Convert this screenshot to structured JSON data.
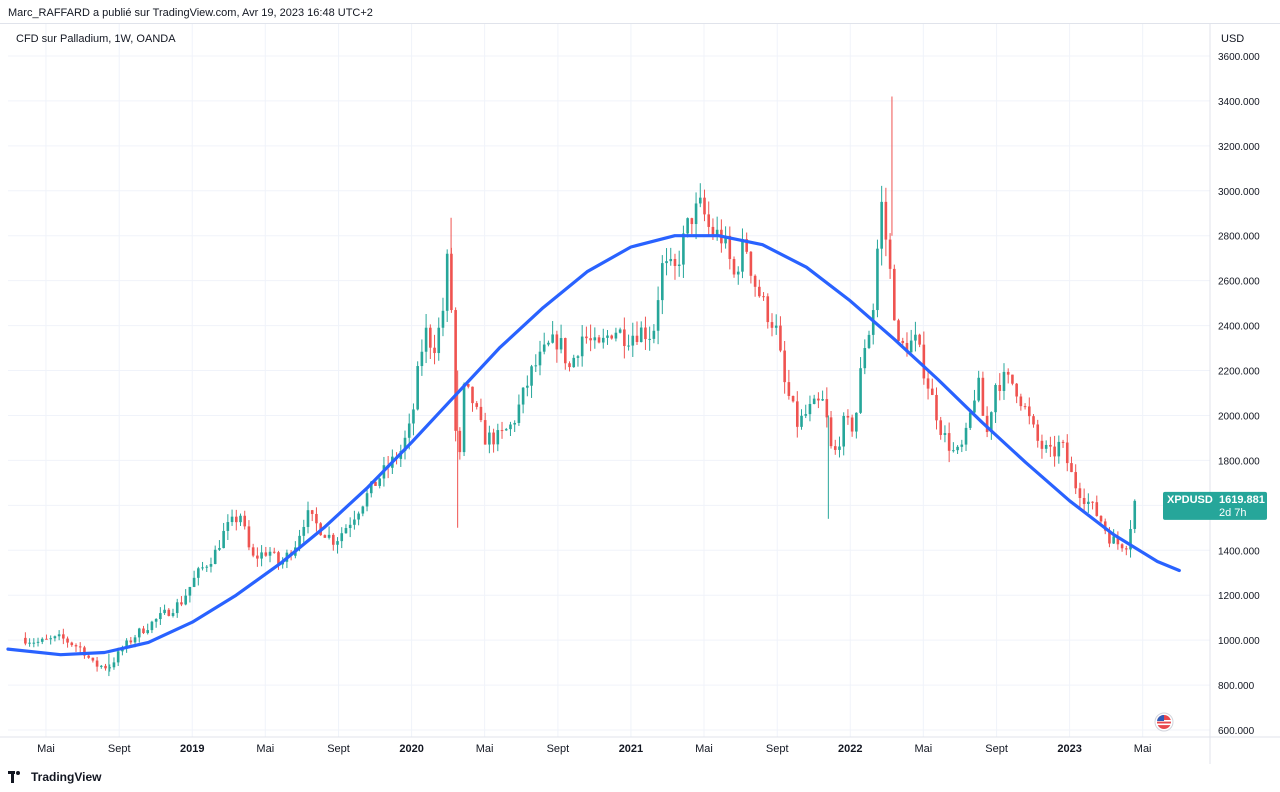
{
  "header": {
    "publisher": "Marc_RAFFARD a publié sur TradingView.com, Avr 19, 2023 16:48 UTC+2"
  },
  "footer": {
    "brand": "TradingView",
    "logo_icon": "tradingview-logo-icon"
  },
  "chart_data": {
    "type": "candlestick",
    "title": "CFD sur Palladium, 1W, OANDA",
    "currency": "USD",
    "ylim": [
      600,
      3600
    ],
    "y_ticks": [
      "600.000",
      "800.000",
      "1000.000",
      "1200.000",
      "1400.000",
      "1600.000",
      "1800.000",
      "2000.000",
      "2200.000",
      "2400.000",
      "2600.000",
      "2800.000",
      "3000.000",
      "3200.000",
      "3400.000",
      "3600.000"
    ],
    "y_tick_values": [
      600,
      800,
      1000,
      1200,
      1400,
      1600,
      1800,
      2000,
      2200,
      2400,
      2600,
      2800,
      3000,
      3200,
      3400,
      3600
    ],
    "x_ticks": [
      "Mai",
      "Sept",
      "2019",
      "Mai",
      "Sept",
      "2020",
      "Mai",
      "Sept",
      "2021",
      "Mai",
      "Sept",
      "2022",
      "Mai",
      "Sept",
      "2023",
      "Mai"
    ],
    "x_tick_months": [
      2018.333,
      2018.667,
      2019.0,
      2019.333,
      2019.667,
      2020.0,
      2020.333,
      2020.667,
      2021.0,
      2021.333,
      2021.667,
      2022.0,
      2022.333,
      2022.667,
      2023.0,
      2023.333
    ],
    "x_bold": [
      false,
      false,
      true,
      false,
      false,
      true,
      false,
      false,
      true,
      false,
      false,
      true,
      false,
      false,
      true,
      false
    ],
    "price_path": [
      [
        2018.22,
        1010
      ],
      [
        2018.3,
        990
      ],
      [
        2018.4,
        1010
      ],
      [
        2018.5,
        960
      ],
      [
        2018.55,
        890
      ],
      [
        2018.62,
        880
      ],
      [
        2018.68,
        960
      ],
      [
        2018.75,
        1030
      ],
      [
        2018.85,
        1100
      ],
      [
        2018.95,
        1170
      ],
      [
        2019.02,
        1290
      ],
      [
        2019.1,
        1380
      ],
      [
        2019.15,
        1490
      ],
      [
        2019.22,
        1560
      ],
      [
        2019.27,
        1360
      ],
      [
        2019.35,
        1400
      ],
      [
        2019.4,
        1330
      ],
      [
        2019.47,
        1430
      ],
      [
        2019.52,
        1560
      ],
      [
        2019.58,
        1500
      ],
      [
        2019.65,
        1440
      ],
      [
        2019.72,
        1530
      ],
      [
        2019.78,
        1620
      ],
      [
        2019.85,
        1720
      ],
      [
        2019.9,
        1780
      ],
      [
        2019.95,
        1840
      ],
      [
        2020.0,
        1960
      ],
      [
        2020.02,
        2130
      ],
      [
        2020.06,
        2380
      ],
      [
        2020.1,
        2300
      ],
      [
        2020.14,
        2430
      ],
      [
        2020.16,
        2700
      ],
      [
        2020.18,
        2520
      ],
      [
        2020.21,
        1660
      ],
      [
        2020.24,
        2120
      ],
      [
        2020.28,
        2060
      ],
      [
        2020.33,
        1900
      ],
      [
        2020.4,
        1900
      ],
      [
        2020.46,
        1960
      ],
      [
        2020.55,
        2200
      ],
      [
        2020.62,
        2300
      ],
      [
        2020.67,
        2340
      ],
      [
        2020.72,
        2210
      ],
      [
        2020.78,
        2360
      ],
      [
        2020.85,
        2290
      ],
      [
        2020.92,
        2390
      ],
      [
        2020.98,
        2350
      ],
      [
        2021.04,
        2380
      ],
      [
        2021.1,
        2360
      ],
      [
        2021.14,
        2660
      ],
      [
        2021.2,
        2640
      ],
      [
        2021.27,
        2880
      ],
      [
        2021.32,
        2930
      ],
      [
        2021.36,
        2820
      ],
      [
        2021.42,
        2790
      ],
      [
        2021.47,
        2620
      ],
      [
        2021.52,
        2780
      ],
      [
        2021.56,
        2600
      ],
      [
        2021.62,
        2460
      ],
      [
        2021.66,
        2390
      ],
      [
        2021.7,
        2140
      ],
      [
        2021.76,
        1960
      ],
      [
        2021.82,
        2030
      ],
      [
        2021.88,
        2060
      ],
      [
        2021.92,
        1800
      ],
      [
        2021.97,
        1960
      ],
      [
        2022.02,
        1950
      ],
      [
        2022.06,
        2300
      ],
      [
        2022.1,
        2420
      ],
      [
        2022.14,
        2960
      ],
      [
        2022.18,
        2650
      ],
      [
        2022.22,
        2300
      ],
      [
        2022.3,
        2330
      ],
      [
        2022.36,
        2120
      ],
      [
        2022.42,
        1920
      ],
      [
        2022.48,
        1820
      ],
      [
        2022.52,
        1870
      ],
      [
        2022.58,
        2160
      ],
      [
        2022.62,
        1900
      ],
      [
        2022.66,
        2140
      ],
      [
        2022.7,
        2160
      ],
      [
        2022.75,
        2140
      ],
      [
        2022.8,
        2020
      ],
      [
        2022.86,
        1870
      ],
      [
        2022.92,
        1820
      ],
      [
        2022.96,
        1880
      ],
      [
        2023.02,
        1700
      ],
      [
        2023.08,
        1620
      ],
      [
        2023.14,
        1540
      ],
      [
        2023.18,
        1460
      ],
      [
        2023.22,
        1430
      ],
      [
        2023.26,
        1430
      ],
      [
        2023.3,
        1620
      ]
    ],
    "trend_curve": {
      "name": "cycle curve",
      "color": "#2962ff",
      "x": [
        2018.16,
        2018.4,
        2018.6,
        2018.8,
        2019.0,
        2019.2,
        2019.4,
        2019.6,
        2019.8,
        2020.0,
        2020.2,
        2020.4,
        2020.6,
        2020.8,
        2021.0,
        2021.2,
        2021.4,
        2021.6,
        2021.8,
        2022.0,
        2022.2,
        2022.4,
        2022.6,
        2022.8,
        2023.0,
        2023.2,
        2023.4,
        2023.5
      ],
      "y": [
        960,
        935,
        945,
        990,
        1080,
        1200,
        1340,
        1500,
        1680,
        1880,
        2090,
        2300,
        2480,
        2640,
        2750,
        2800,
        2800,
        2760,
        2660,
        2510,
        2340,
        2160,
        1970,
        1790,
        1620,
        1470,
        1350,
        1310
      ]
    },
    "colors": {
      "up": "#26a69a",
      "down": "#ef5350",
      "grid": "#f0f3fa",
      "axis_text": "#131722",
      "badge": "#26a69a"
    },
    "last_price_badge": {
      "symbol": "XPDUSD",
      "price": "1619.881",
      "countdown": "2d 7h",
      "value": 1619.881
    },
    "flag_icon": "us-flag-icon"
  }
}
